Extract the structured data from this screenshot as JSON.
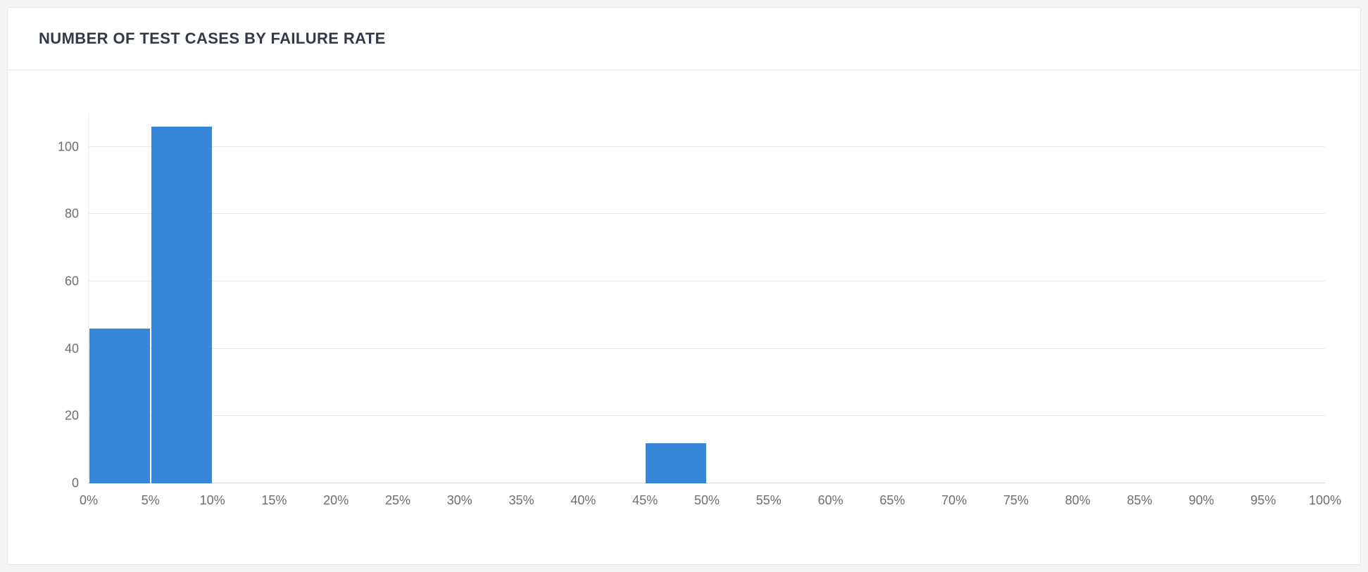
{
  "page": {
    "background": "#f4f5f7"
  },
  "card": {
    "title": "NUMBER OF TEST CASES BY FAILURE RATE"
  },
  "chart_data": {
    "type": "bar",
    "title": "NUMBER OF TEST CASES BY FAILURE RATE",
    "xlabel": "",
    "ylabel": "",
    "bin_width_percent": 5,
    "x_tick_labels": [
      "0%",
      "5%",
      "10%",
      "15%",
      "20%",
      "25%",
      "30%",
      "35%",
      "40%",
      "45%",
      "50%",
      "55%",
      "60%",
      "65%",
      "70%",
      "75%",
      "80%",
      "85%",
      "90%",
      "95%",
      "100%"
    ],
    "bins": [
      {
        "range": "0%-5%",
        "value": 46
      },
      {
        "range": "5%-10%",
        "value": 106
      },
      {
        "range": "10%-15%",
        "value": 0
      },
      {
        "range": "15%-20%",
        "value": 0
      },
      {
        "range": "20%-25%",
        "value": 0
      },
      {
        "range": "25%-30%",
        "value": 0
      },
      {
        "range": "30%-35%",
        "value": 0
      },
      {
        "range": "35%-40%",
        "value": 0
      },
      {
        "range": "40%-45%",
        "value": 0
      },
      {
        "range": "45%-50%",
        "value": 12
      },
      {
        "range": "50%-55%",
        "value": 0
      },
      {
        "range": "55%-60%",
        "value": 0
      },
      {
        "range": "60%-65%",
        "value": 0
      },
      {
        "range": "65%-70%",
        "value": 0
      },
      {
        "range": "70%-75%",
        "value": 0
      },
      {
        "range": "75%-80%",
        "value": 0
      },
      {
        "range": "80%-85%",
        "value": 0
      },
      {
        "range": "85%-90%",
        "value": 0
      },
      {
        "range": "90%-95%",
        "value": 0
      },
      {
        "range": "95%-100%",
        "value": 0
      }
    ],
    "y_ticks": [
      0,
      20,
      40,
      60,
      80,
      100
    ],
    "ylim": [
      0,
      110
    ],
    "grid": "horizontal",
    "legend": "none",
    "bar_color": "#3787d8"
  }
}
